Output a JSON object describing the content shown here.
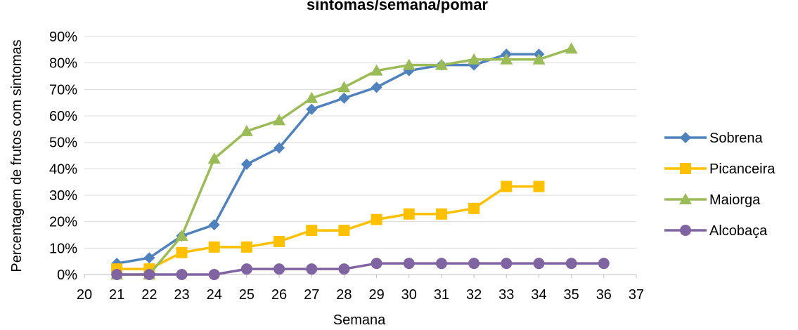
{
  "chart_data": {
    "type": "line",
    "title": "sintomas/semana/pomar",
    "xlabel": "Semana",
    "ylabel": "Percentagem de frutos com sintomas",
    "xlim": [
      20,
      37
    ],
    "ylim": [
      0,
      0.9
    ],
    "x_ticks": [
      "20",
      "21",
      "22",
      "23",
      "24",
      "25",
      "26",
      "27",
      "28",
      "29",
      "30",
      "31",
      "32",
      "33",
      "34",
      "35",
      "36",
      "37"
    ],
    "y_ticks": [
      "0%",
      "10%",
      "20%",
      "30%",
      "40%",
      "50%",
      "60%",
      "70%",
      "80%",
      "90%"
    ],
    "grid": true,
    "legend_position": "right",
    "series": [
      {
        "name": "Sobrena",
        "color": "#4F81BD",
        "marker": "diamond",
        "x": [
          21,
          22,
          23,
          24,
          25,
          26,
          27,
          28,
          29,
          30,
          31,
          32,
          33,
          34
        ],
        "y": [
          0.042,
          0.063,
          0.146,
          0.188,
          0.417,
          0.479,
          0.625,
          0.667,
          0.708,
          0.771,
          0.792,
          0.792,
          0.833,
          0.833
        ]
      },
      {
        "name": "Picanceira",
        "color": "#FFC000",
        "marker": "square",
        "x": [
          21,
          22,
          23,
          24,
          25,
          26,
          27,
          28,
          29,
          30,
          31,
          32,
          33,
          34
        ],
        "y": [
          0.021,
          0.021,
          0.083,
          0.104,
          0.104,
          0.125,
          0.167,
          0.167,
          0.208,
          0.229,
          0.229,
          0.25,
          0.333,
          0.333
        ]
      },
      {
        "name": "Maiorga",
        "color": "#9BBB59",
        "marker": "triangle",
        "x": [
          21,
          22,
          23,
          24,
          25,
          26,
          27,
          28,
          29,
          30,
          31,
          32,
          33,
          34,
          35
        ],
        "y": [
          0.0,
          0.0,
          0.146,
          0.438,
          0.542,
          0.583,
          0.667,
          0.708,
          0.771,
          0.792,
          0.792,
          0.813,
          0.813,
          0.813,
          0.854
        ]
      },
      {
        "name": "Alcobaça",
        "color": "#8064A2",
        "marker": "circle",
        "x": [
          21,
          22,
          23,
          24,
          25,
          26,
          27,
          28,
          29,
          30,
          31,
          32,
          33,
          34,
          35,
          36
        ],
        "y": [
          0.0,
          0.0,
          0.0,
          0.0,
          0.021,
          0.021,
          0.021,
          0.021,
          0.042,
          0.042,
          0.042,
          0.042,
          0.042,
          0.042,
          0.042,
          0.042
        ]
      }
    ]
  }
}
